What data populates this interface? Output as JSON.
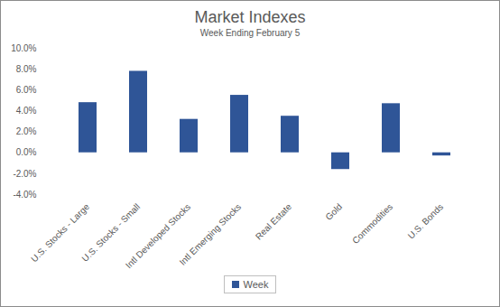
{
  "chart_data": {
    "type": "bar",
    "title": "Market Indexes",
    "subtitle": "Week Ending February 5",
    "categories": [
      "U.S. Stocks - Large",
      "U.S. Stocks - Small",
      "Intl Developed Stocks",
      "Intl Emerging Stocks",
      "Real Estate",
      "Gold",
      "Commodities",
      "U.S. Bonds"
    ],
    "series": [
      {
        "name": "Week",
        "color": "#2f5597",
        "values": [
          4.8,
          7.8,
          3.2,
          5.5,
          3.5,
          -1.6,
          4.7,
          -0.3
        ]
      }
    ],
    "ylim": [
      -4,
      10
    ],
    "yticks": [
      {
        "value": -4,
        "label": "-4.0%"
      },
      {
        "value": -2,
        "label": "-2.0%"
      },
      {
        "value": 0,
        "label": "0.0%"
      },
      {
        "value": 2,
        "label": "2.0%"
      },
      {
        "value": 4,
        "label": "4.0%"
      },
      {
        "value": 6,
        "label": "6.0%"
      },
      {
        "value": 8,
        "label": "8.0%"
      },
      {
        "value": 10,
        "label": "10.0%"
      }
    ],
    "grid": false,
    "legend": "bottom"
  }
}
